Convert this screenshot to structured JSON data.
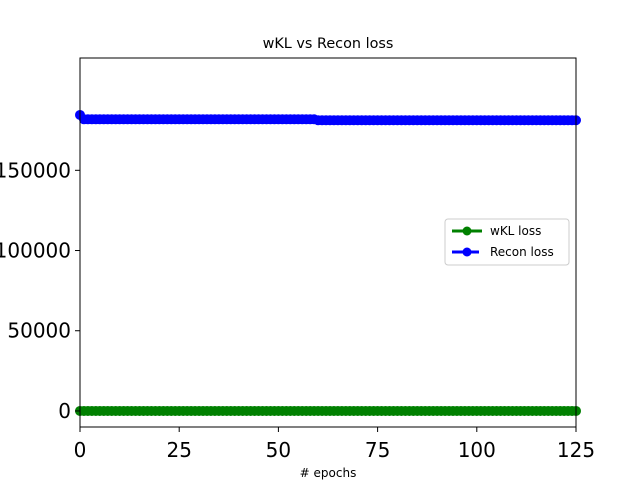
{
  "chart_data": {
    "type": "line",
    "title": "wKL vs Recon loss",
    "xlabel": "# epochs",
    "ylabel": "",
    "xlim": [
      0,
      125
    ],
    "ylim": [
      -10000,
      220000
    ],
    "x_ticks": [
      0,
      25,
      50,
      75,
      100,
      125
    ],
    "x_tick_labels": [
      "0",
      "25",
      "50",
      "75",
      "100",
      "125"
    ],
    "y_ticks": [
      0,
      50000,
      100000,
      150000
    ],
    "y_tick_labels": [
      "0",
      "50000",
      "100000",
      "150000"
    ],
    "grid": false,
    "legend_position": "center-right",
    "series": [
      {
        "name": "wKL loss",
        "color": "#008000",
        "linestyle": "solid",
        "marker": "circle",
        "x_range": [
          0,
          125
        ],
        "segments": [
          {
            "from": 0,
            "to": 125,
            "value": 0
          }
        ]
      },
      {
        "name": "Recon loss",
        "color": "#0000ff",
        "linestyle": "dashed",
        "marker": "circle",
        "x_range": [
          0,
          125
        ],
        "points": [
          {
            "x": 0,
            "y": 184500
          },
          {
            "x": 1,
            "y": 181800
          }
        ],
        "segments": [
          {
            "from": 1,
            "to": 59,
            "value": 181800
          },
          {
            "from": 60,
            "to": 125,
            "value": 181200
          }
        ]
      }
    ]
  }
}
